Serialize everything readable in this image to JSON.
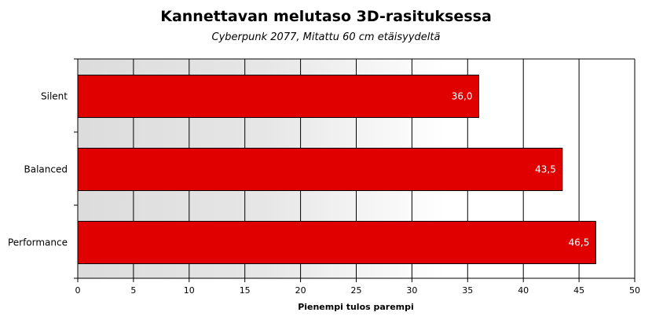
{
  "chart_data": {
    "type": "bar",
    "orientation": "horizontal",
    "title": "Kannettavan melutaso 3D-rasituksessa",
    "subtitle": "Cyberpunk 2077, Mitattu 60 cm etäisyydeltä",
    "xlabel": "Pienempi tulos parempi",
    "ylabel": "",
    "categories": [
      "Silent",
      "Balanced",
      "Performance"
    ],
    "values": [
      36.0,
      43.5,
      46.5
    ],
    "value_labels": [
      "36,0",
      "43,5",
      "46,5"
    ],
    "xlim": [
      0,
      50
    ],
    "xticks": [
      0,
      5,
      10,
      15,
      20,
      25,
      30,
      35,
      40,
      45,
      50
    ],
    "grid": true,
    "bar_color": "#e00000",
    "plot_background": "gradient light gray to white"
  }
}
